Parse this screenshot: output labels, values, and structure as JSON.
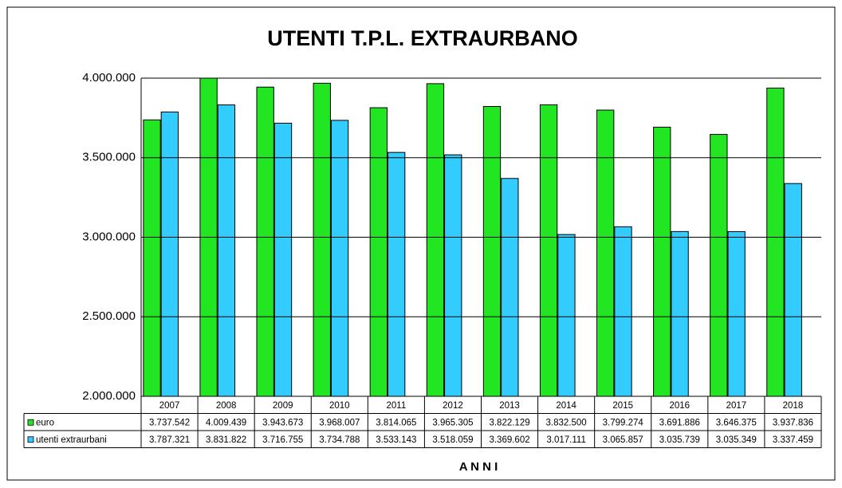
{
  "chart_data": {
    "type": "bar",
    "title": "UTENTI T.P.L. EXTRAURBANO",
    "x_label": "A N N I",
    "categories": [
      "2007",
      "2008",
      "2009",
      "2010",
      "2011",
      "2012",
      "2013",
      "2014",
      "2015",
      "2016",
      "2017",
      "2018"
    ],
    "series": [
      {
        "name": "euro",
        "color": "#22e622",
        "values": [
          3737542,
          4009439,
          3943673,
          3968007,
          3814065,
          3965305,
          3822129,
          3832500,
          3799274,
          3691886,
          3646375,
          3937836
        ],
        "value_labels": [
          "3.737.542",
          "4.009.439",
          "3.943.673",
          "3.968.007",
          "3.814.065",
          "3.965.305",
          "3.822.129",
          "3.832.500",
          "3.799.274",
          "3.691.886",
          "3.646.375",
          "3.937.836"
        ]
      },
      {
        "name": "utenti extraurbani",
        "color": "#33ccff",
        "values": [
          3787321,
          3831822,
          3716755,
          3734788,
          3533143,
          3518059,
          3369602,
          3017111,
          3065857,
          3035739,
          3035349,
          3337459
        ],
        "value_labels": [
          "3.787.321",
          "3.831.822",
          "3.716.755",
          "3.734.788",
          "3.533.143",
          "3.518.059",
          "3.369.602",
          "3.017.111",
          "3.065.857",
          "3.035.739",
          "3.035.349",
          "3.337.459"
        ]
      }
    ],
    "ylim": [
      2000000,
      4000000
    ],
    "yticks": [
      {
        "value": 2000000,
        "label": "2.000.000"
      },
      {
        "value": 2500000,
        "label": "2.500.000"
      },
      {
        "value": 3000000,
        "label": "3.000.000"
      },
      {
        "value": 3500000,
        "label": "3.500.000"
      },
      {
        "value": 4000000,
        "label": "4.000.000"
      }
    ],
    "grid": true
  }
}
